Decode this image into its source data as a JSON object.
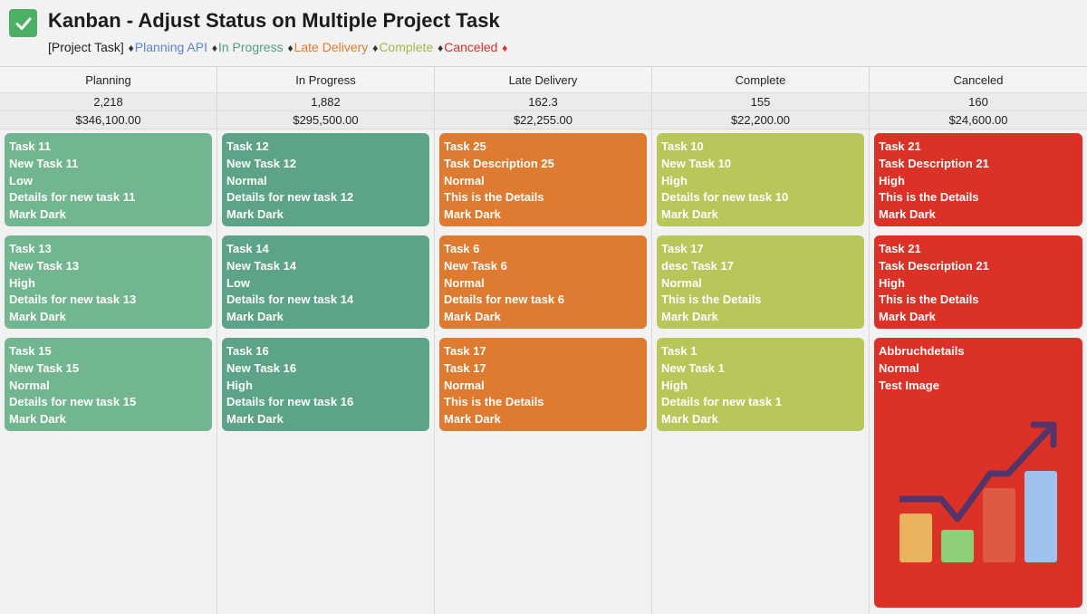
{
  "header": {
    "title": "Kanban - Adjust Status on Multiple Project Task",
    "legend_prefix": "[Project Task]",
    "legend_items": [
      {
        "label": "Planning API",
        "color": "#5b86c9"
      },
      {
        "label": "In Progress",
        "color": "#4f9f84"
      },
      {
        "label": "Late Delivery",
        "color": "#e07a2f"
      },
      {
        "label": "Complete",
        "color": "#a3b84a"
      },
      {
        "label": "Canceled",
        "color": "#d9302b"
      }
    ],
    "separator": "♦"
  },
  "columns": [
    {
      "title": "Planning",
      "count": "2,218",
      "amount": "$346,100.00",
      "color": "#72b68f",
      "cards": [
        {
          "lines": [
            "Task 11",
            "New Task 11",
            "Low",
            "Details for new task 11",
            "Mark Dark"
          ]
        },
        {
          "lines": [
            "Task 13",
            "New Task 13",
            "High",
            "Details for new task 13",
            "Mark Dark"
          ]
        },
        {
          "lines": [
            "Task 15",
            "New Task 15",
            "Normal",
            "Details for new task 15",
            "Mark Dark"
          ]
        }
      ]
    },
    {
      "title": "In Progress",
      "count": "1,882",
      "amount": "$295,500.00",
      "color": "#5ca387",
      "cards": [
        {
          "lines": [
            "Task 12",
            "New Task 12",
            "Normal",
            "Details for new task 12",
            "Mark Dark"
          ]
        },
        {
          "lines": [
            "Task 14",
            "New Task 14",
            "Low",
            "Details for new task 14",
            "Mark Dark"
          ]
        },
        {
          "lines": [
            "Task 16",
            "New Task 16",
            "High",
            "Details for new task 16",
            "Mark Dark"
          ]
        }
      ]
    },
    {
      "title": "Late Delivery",
      "count": "162.3",
      "amount": "$22,255.00",
      "color": "#de7b31",
      "cards": [
        {
          "lines": [
            "Task 25",
            "Task Description 25",
            "Normal",
            "This is the Details",
            "Mark Dark"
          ]
        },
        {
          "lines": [
            "Task 6",
            "New Task 6",
            "Normal",
            "Details for new task 6",
            "Mark Dark"
          ]
        },
        {
          "lines": [
            "Task 17",
            "Task 17",
            "Normal",
            "This is the Details",
            "Mark Dark"
          ]
        }
      ]
    },
    {
      "title": "Complete",
      "count": "155",
      "amount": "$22,200.00",
      "color": "#b8c65a",
      "cards": [
        {
          "lines": [
            "Task 10",
            "New Task 10",
            "High",
            "Details for new task 10",
            "Mark Dark"
          ]
        },
        {
          "lines": [
            "Task 17",
            "desc Task 17",
            "Normal",
            "This is the Details",
            "Mark Dark"
          ]
        },
        {
          "lines": [
            "Task 1",
            "New Task 1",
            "High",
            "Details for new task 1",
            "Mark Dark"
          ]
        }
      ]
    },
    {
      "title": "Canceled",
      "count": "160",
      "amount": "$24,600.00",
      "color": "#dc3127",
      "cards": [
        {
          "lines": [
            "Task 21",
            "Task Description 21",
            "High",
            "This is the Details",
            "Mark Dark"
          ]
        },
        {
          "lines": [
            "Task 21",
            "Task Description 21",
            "High",
            "This is the Details",
            "Mark Dark"
          ]
        },
        {
          "lines": [
            "Abbruchdetails",
            "Normal",
            "Test Image"
          ],
          "image": "growth-chart-image"
        }
      ]
    }
  ]
}
